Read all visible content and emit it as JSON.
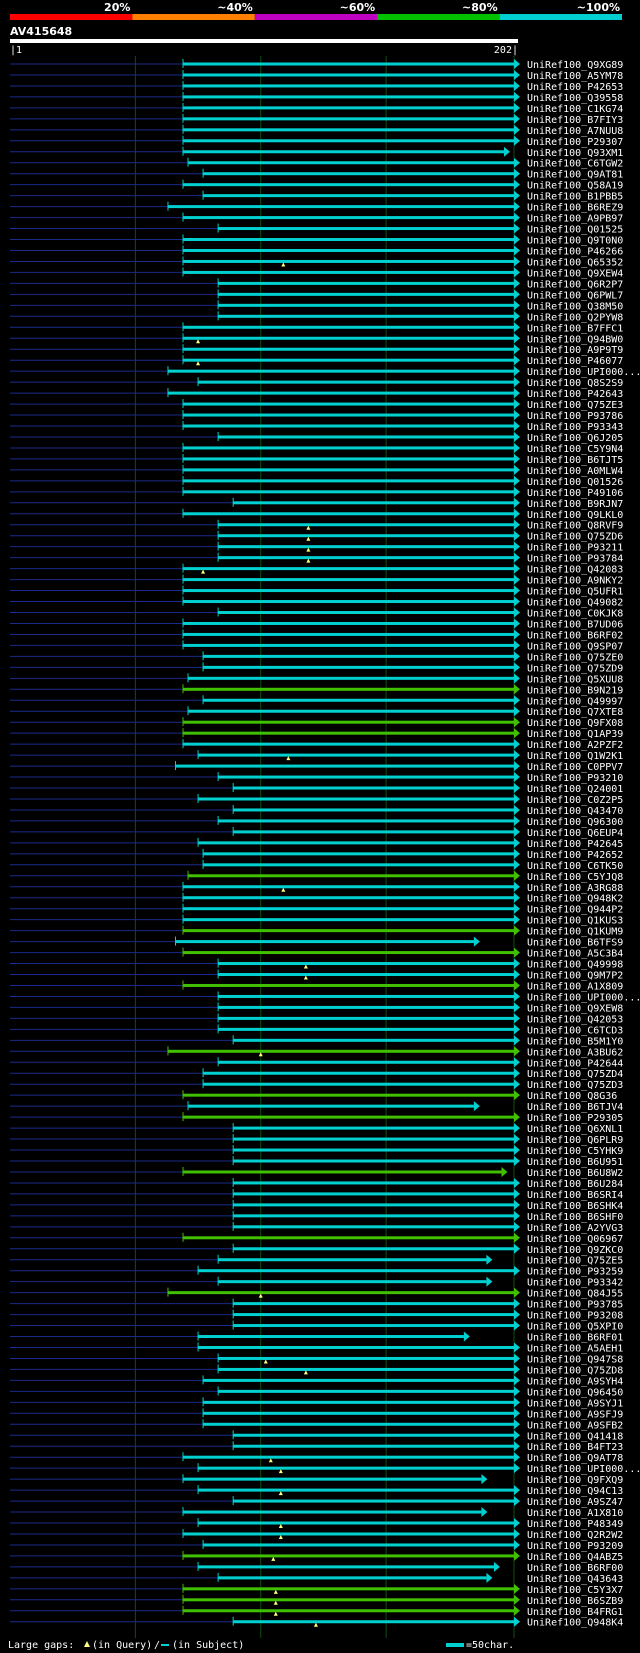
{
  "header": {
    "scale_labels": [
      "20%",
      "~40%",
      "~60%",
      "~80%",
      "~100%"
    ],
    "scale_colors": [
      "#ff0000",
      "#ff8000",
      "#c000c0",
      "#00c000",
      "#00d0d0"
    ],
    "query_id": "AV415648",
    "query_start": "1",
    "query_end": "202"
  },
  "colors": {
    "high_identity": "#00d0d0",
    "mid_identity": "#40c000",
    "gap_line": "#1a2a8a",
    "gridline": "#0f4f0f",
    "marker": "#ffff80"
  },
  "hits": [
    {
      "label": "UniRef100_Q9XG89",
      "start": 70,
      "end": 202,
      "level": "cyan",
      "end_arrow": true
    },
    {
      "label": "UniRef100_A5YM78",
      "start": 70,
      "end": 202,
      "level": "cyan"
    },
    {
      "label": "UniRef100_P42653",
      "start": 70,
      "end": 202,
      "level": "cyan"
    },
    {
      "label": "UniRef100_Q39558",
      "start": 70,
      "end": 202,
      "level": "cyan"
    },
    {
      "label": "UniRef100_C1KG74",
      "start": 70,
      "end": 202,
      "level": "cyan"
    },
    {
      "label": "UniRef100_B7FIY3",
      "start": 70,
      "end": 202,
      "level": "cyan"
    },
    {
      "label": "UniRef100_A7NUU8",
      "start": 70,
      "end": 202,
      "level": "cyan"
    },
    {
      "label": "UniRef100_P29307",
      "start": 70,
      "end": 202,
      "level": "cyan"
    },
    {
      "label": "UniRef100_Q93XM1",
      "start": 70,
      "end": 198,
      "level": "cyan",
      "end_arrow": true
    },
    {
      "label": "UniRef100_C6TGW2",
      "start": 72,
      "end": 202,
      "level": "cyan"
    },
    {
      "label": "UniRef100_Q9AT81",
      "start": 78,
      "end": 202,
      "level": "cyan"
    },
    {
      "label": "UniRef100_Q58A19",
      "start": 70,
      "end": 202,
      "level": "cyan"
    },
    {
      "label": "UniRef100_B1PBB5",
      "start": 78,
      "end": 202,
      "level": "cyan"
    },
    {
      "label": "UniRef100_B6REZ9",
      "start": 64,
      "end": 202,
      "level": "cyan"
    },
    {
      "label": "UniRef100_A9PB97",
      "start": 70,
      "end": 202,
      "level": "cyan"
    },
    {
      "label": "UniRef100_Q01525",
      "start": 84,
      "end": 202,
      "level": "cyan"
    },
    {
      "label": "UniRef100_Q9T0N0",
      "start": 70,
      "end": 202,
      "level": "cyan"
    },
    {
      "label": "UniRef100_P46266",
      "start": 70,
      "end": 202,
      "level": "cyan"
    },
    {
      "label": "UniRef100_Q65352",
      "start": 70,
      "end": 202,
      "level": "cyan",
      "marker": 110
    },
    {
      "label": "UniRef100_Q9XEW4",
      "start": 70,
      "end": 202,
      "level": "cyan"
    },
    {
      "label": "UniRef100_Q6R2P7",
      "start": 84,
      "end": 202,
      "level": "cyan"
    },
    {
      "label": "UniRef100_Q6PWL7",
      "start": 84,
      "end": 202,
      "level": "cyan"
    },
    {
      "label": "UniRef100_Q38M50",
      "start": 84,
      "end": 202,
      "level": "cyan"
    },
    {
      "label": "UniRef100_Q2PYW8",
      "start": 84,
      "end": 202,
      "level": "cyan"
    },
    {
      "label": "UniRef100_B7FFC1",
      "start": 70,
      "end": 202,
      "level": "cyan"
    },
    {
      "label": "UniRef100_Q94BW0",
      "start": 70,
      "end": 202,
      "level": "cyan",
      "marker": 76
    },
    {
      "label": "UniRef100_A9P9T9",
      "start": 70,
      "end": 202,
      "level": "cyan"
    },
    {
      "label": "UniRef100_P46077",
      "start": 70,
      "end": 202,
      "level": "cyan",
      "marker": 76
    },
    {
      "label": "UniRef100_UPI000...",
      "start": 64,
      "end": 202,
      "level": "cyan"
    },
    {
      "label": "UniRef100_Q8S2S9",
      "start": 76,
      "end": 202,
      "level": "cyan"
    },
    {
      "label": "UniRef100_P42643",
      "start": 64,
      "end": 202,
      "level": "cyan"
    },
    {
      "label": "UniRef100_Q75ZE3",
      "start": 70,
      "end": 202,
      "level": "cyan"
    },
    {
      "label": "UniRef100_P93786",
      "start": 70,
      "end": 202,
      "level": "cyan"
    },
    {
      "label": "UniRef100_P93343",
      "start": 70,
      "end": 202,
      "level": "cyan"
    },
    {
      "label": "UniRef100_Q6J205",
      "start": 84,
      "end": 202,
      "level": "cyan"
    },
    {
      "label": "UniRef100_C5Y9N4",
      "start": 70,
      "end": 202,
      "level": "cyan"
    },
    {
      "label": "UniRef100_B6TJT5",
      "start": 70,
      "end": 202,
      "level": "cyan"
    },
    {
      "label": "UniRef100_A0MLW4",
      "start": 70,
      "end": 202,
      "level": "cyan"
    },
    {
      "label": "UniRef100_Q01526",
      "start": 70,
      "end": 202,
      "level": "cyan"
    },
    {
      "label": "UniRef100_P49106",
      "start": 70,
      "end": 202,
      "level": "cyan"
    },
    {
      "label": "UniRef100_B9RJN7",
      "start": 90,
      "end": 202,
      "level": "cyan"
    },
    {
      "label": "UniRef100_Q9LKL0",
      "start": 70,
      "end": 202,
      "level": "cyan"
    },
    {
      "label": "UniRef100_Q8RVF9",
      "start": 84,
      "end": 202,
      "level": "cyan",
      "marker": 120
    },
    {
      "label": "UniRef100_Q75ZD6",
      "start": 84,
      "end": 202,
      "level": "cyan",
      "marker": 120
    },
    {
      "label": "UniRef100_P93211",
      "start": 84,
      "end": 202,
      "level": "cyan",
      "marker": 120
    },
    {
      "label": "UniRef100_P93784",
      "start": 84,
      "end": 202,
      "level": "cyan",
      "marker": 120
    },
    {
      "label": "UniRef100_Q42083",
      "start": 70,
      "end": 202,
      "level": "cyan",
      "marker": 78
    },
    {
      "label": "UniRef100_A9NKY2",
      "start": 70,
      "end": 202,
      "level": "cyan"
    },
    {
      "label": "UniRef100_Q5UFR1",
      "start": 70,
      "end": 202,
      "level": "cyan"
    },
    {
      "label": "UniRef100_Q49082",
      "start": 70,
      "end": 202,
      "level": "cyan"
    },
    {
      "label": "UniRef100_C0KJK8",
      "start": 84,
      "end": 202,
      "level": "cyan"
    },
    {
      "label": "UniRef100_B7UD06",
      "start": 70,
      "end": 202,
      "level": "cyan"
    },
    {
      "label": "UniRef100_B6RF02",
      "start": 70,
      "end": 202,
      "level": "cyan"
    },
    {
      "label": "UniRef100_Q9SP07",
      "start": 70,
      "end": 202,
      "level": "cyan"
    },
    {
      "label": "UniRef100_Q75ZE0",
      "start": 78,
      "end": 202,
      "level": "cyan"
    },
    {
      "label": "UniRef100_Q75ZD9",
      "start": 78,
      "end": 202,
      "level": "cyan"
    },
    {
      "label": "UniRef100_Q5XUU8",
      "start": 72,
      "end": 202,
      "level": "cyan"
    },
    {
      "label": "UniRef100_B9N219",
      "start": 70,
      "end": 202,
      "level": "green"
    },
    {
      "label": "UniRef100_Q49997",
      "start": 78,
      "end": 202,
      "level": "cyan"
    },
    {
      "label": "UniRef100_Q7XTE8",
      "start": 72,
      "end": 202,
      "level": "cyan"
    },
    {
      "label": "UniRef100_Q9FX08",
      "start": 70,
      "end": 202,
      "level": "green"
    },
    {
      "label": "UniRef100_Q1AP39",
      "start": 70,
      "end": 202,
      "level": "green"
    },
    {
      "label": "UniRef100_A2PZF2",
      "start": 70,
      "end": 202,
      "level": "cyan"
    },
    {
      "label": "UniRef100_Q1W2K1",
      "start": 76,
      "end": 202,
      "level": "cyan",
      "marker": 112
    },
    {
      "label": "UniRef100_C0PPV7",
      "start": 67,
      "end": 202,
      "level": "cyan"
    },
    {
      "label": "UniRef100_P93210",
      "start": 84,
      "end": 202,
      "level": "cyan"
    },
    {
      "label": "UniRef100_Q24001",
      "start": 90,
      "end": 202,
      "level": "cyan"
    },
    {
      "label": "UniRef100_C0Z2P5",
      "start": 76,
      "end": 202,
      "level": "cyan"
    },
    {
      "label": "UniRef100_Q43470",
      "start": 90,
      "end": 202,
      "level": "cyan"
    },
    {
      "label": "UniRef100_Q96300",
      "start": 84,
      "end": 202,
      "level": "cyan"
    },
    {
      "label": "UniRef100_Q6EUP4",
      "start": 90,
      "end": 202,
      "level": "cyan"
    },
    {
      "label": "UniRef100_P42645",
      "start": 76,
      "end": 202,
      "level": "cyan"
    },
    {
      "label": "UniRef100_P42652",
      "start": 78,
      "end": 202,
      "level": "cyan"
    },
    {
      "label": "UniRef100_C6TK50",
      "start": 78,
      "end": 202,
      "level": "cyan"
    },
    {
      "label": "UniRef100_C5YJQ8",
      "start": 72,
      "end": 202,
      "level": "green"
    },
    {
      "label": "UniRef100_A3RG88",
      "start": 70,
      "end": 202,
      "level": "cyan",
      "marker": 110
    },
    {
      "label": "UniRef100_Q948K2",
      "start": 70,
      "end": 202,
      "level": "cyan"
    },
    {
      "label": "UniRef100_Q944P2",
      "start": 70,
      "end": 202,
      "level": "cyan"
    },
    {
      "label": "UniRef100_Q1KUS3",
      "start": 70,
      "end": 202,
      "level": "cyan"
    },
    {
      "label": "UniRef100_Q1KUM9",
      "start": 70,
      "end": 202,
      "level": "green"
    },
    {
      "label": "UniRef100_B6TFS9",
      "start": 67,
      "end": 186,
      "level": "cyan",
      "end_arrow": true
    },
    {
      "label": "UniRef100_A5C3B4",
      "start": 70,
      "end": 202,
      "level": "green"
    },
    {
      "label": "UniRef100_Q49998",
      "start": 84,
      "end": 202,
      "level": "cyan",
      "marker": 119
    },
    {
      "label": "UniRef100_Q9M7P2",
      "start": 84,
      "end": 202,
      "level": "cyan",
      "marker": 119
    },
    {
      "label": "UniRef100_A1X809",
      "start": 70,
      "end": 202,
      "level": "green"
    },
    {
      "label": "UniRef100_UPI000...",
      "start": 84,
      "end": 202,
      "level": "cyan"
    },
    {
      "label": "UniRef100_Q9XEW8",
      "start": 84,
      "end": 202,
      "level": "cyan"
    },
    {
      "label": "UniRef100_Q42053",
      "start": 84,
      "end": 202,
      "level": "cyan"
    },
    {
      "label": "UniRef100_C6TCD3",
      "start": 84,
      "end": 202,
      "level": "cyan"
    },
    {
      "label": "UniRef100_B5M1Y0",
      "start": 90,
      "end": 202,
      "level": "cyan"
    },
    {
      "label": "UniRef100_A3BU62",
      "start": 64,
      "end": 202,
      "level": "green",
      "marker": 101
    },
    {
      "label": "UniRef100_P42644",
      "start": 84,
      "end": 202,
      "level": "cyan"
    },
    {
      "label": "UniRef100_Q75ZD4",
      "start": 78,
      "end": 202,
      "level": "cyan"
    },
    {
      "label": "UniRef100_Q75ZD3",
      "start": 78,
      "end": 202,
      "level": "cyan"
    },
    {
      "label": "UniRef100_Q8G36",
      "start": 70,
      "end": 202,
      "level": "green"
    },
    {
      "label": "UniRef100_B6TJV4",
      "start": 72,
      "end": 186,
      "level": "cyan",
      "end_arrow": true
    },
    {
      "label": "UniRef100_P29305",
      "start": 70,
      "end": 202,
      "level": "green"
    },
    {
      "label": "UniRef100_Q6XNL1",
      "start": 90,
      "end": 202,
      "level": "cyan"
    },
    {
      "label": "UniRef100_Q6PLR9",
      "start": 90,
      "end": 202,
      "level": "cyan"
    },
    {
      "label": "UniRef100_C5YHK9",
      "start": 90,
      "end": 202,
      "level": "cyan"
    },
    {
      "label": "UniRef100_B6U951",
      "start": 90,
      "end": 202,
      "level": "cyan"
    },
    {
      "label": "UniRef100_B6U8W2",
      "start": 70,
      "end": 197,
      "level": "green",
      "end_arrow": true
    },
    {
      "label": "UniRef100_B6U284",
      "start": 90,
      "end": 202,
      "level": "cyan"
    },
    {
      "label": "UniRef100_B6SRI4",
      "start": 90,
      "end": 202,
      "level": "cyan"
    },
    {
      "label": "UniRef100_B6SHK4",
      "start": 90,
      "end": 202,
      "level": "cyan"
    },
    {
      "label": "UniRef100_B6SHF0",
      "start": 90,
      "end": 202,
      "level": "cyan"
    },
    {
      "label": "UniRef100_A2YVG3",
      "start": 90,
      "end": 202,
      "level": "cyan"
    },
    {
      "label": "UniRef100_Q06967",
      "start": 70,
      "end": 202,
      "level": "green"
    },
    {
      "label": "UniRef100_Q9ZKC0",
      "start": 90,
      "end": 202,
      "level": "cyan"
    },
    {
      "label": "UniRef100_Q75ZE5",
      "start": 84,
      "end": 191,
      "level": "cyan",
      "end_arrow": true
    },
    {
      "label": "UniRef100_P93259",
      "start": 76,
      "end": 202,
      "level": "cyan"
    },
    {
      "label": "UniRef100_P93342",
      "start": 84,
      "end": 191,
      "level": "cyan",
      "end_arrow": true
    },
    {
      "label": "UniRef100_Q84J55",
      "start": 64,
      "end": 202,
      "level": "green",
      "marker": 101
    },
    {
      "label": "UniRef100_P93785",
      "start": 90,
      "end": 202,
      "level": "cyan"
    },
    {
      "label": "UniRef100_P93208",
      "start": 90,
      "end": 202,
      "level": "cyan"
    },
    {
      "label": "UniRef100_Q5XPI0",
      "start": 90,
      "end": 202,
      "level": "cyan"
    },
    {
      "label": "UniRef100_B6RF01",
      "start": 76,
      "end": 182,
      "level": "cyan",
      "end_arrow": true
    },
    {
      "label": "UniRef100_A5AEH1",
      "start": 76,
      "end": 202,
      "level": "cyan"
    },
    {
      "label": "UniRef100_Q947S8",
      "start": 84,
      "end": 202,
      "level": "cyan",
      "marker": 103
    },
    {
      "label": "UniRef100_Q75ZD8",
      "start": 84,
      "end": 202,
      "level": "cyan",
      "marker": 119
    },
    {
      "label": "UniRef100_A9SYH4",
      "start": 78,
      "end": 202,
      "level": "cyan"
    },
    {
      "label": "UniRef100_Q96450",
      "start": 84,
      "end": 202,
      "level": "cyan"
    },
    {
      "label": "UniRef100_A9SYJ1",
      "start": 78,
      "end": 202,
      "level": "cyan"
    },
    {
      "label": "UniRef100_A9SFJ9",
      "start": 78,
      "end": 202,
      "level": "cyan"
    },
    {
      "label": "UniRef100_A9SFB2",
      "start": 78,
      "end": 202,
      "level": "cyan"
    },
    {
      "label": "UniRef100_Q41418",
      "start": 90,
      "end": 202,
      "level": "cyan"
    },
    {
      "label": "UniRef100_B4FT23",
      "start": 90,
      "end": 202,
      "level": "cyan"
    },
    {
      "label": "UniRef100_Q9AT78",
      "start": 70,
      "end": 202,
      "level": "cyan",
      "marker": 105
    },
    {
      "label": "UniRef100_UPI000...",
      "start": 76,
      "end": 202,
      "level": "cyan",
      "marker": 109
    },
    {
      "label": "UniRef100_Q9FXQ9",
      "start": 70,
      "end": 189,
      "level": "cyan",
      "end_arrow": true
    },
    {
      "label": "UniRef100_Q94C13",
      "start": 76,
      "end": 202,
      "level": "cyan",
      "marker": 109
    },
    {
      "label": "UniRef100_A9SZ47",
      "start": 90,
      "end": 202,
      "level": "cyan"
    },
    {
      "label": "UniRef100_A1X810",
      "start": 70,
      "end": 189,
      "level": "cyan",
      "end_arrow": true
    },
    {
      "label": "UniRef100_P48349",
      "start": 76,
      "end": 202,
      "level": "cyan",
      "marker": 109
    },
    {
      "label": "UniRef100_Q2R2W2",
      "start": 70,
      "end": 202,
      "level": "cyan",
      "marker": 109
    },
    {
      "label": "UniRef100_P93209",
      "start": 78,
      "end": 202,
      "level": "cyan"
    },
    {
      "label": "UniRef100_Q4ABZ5",
      "start": 70,
      "end": 202,
      "level": "green",
      "marker": 106
    },
    {
      "label": "UniRef100_B6RF00",
      "start": 76,
      "end": 194,
      "level": "cyan",
      "end_arrow": true
    },
    {
      "label": "UniRef100_Q43643",
      "start": 84,
      "end": 191,
      "level": "cyan",
      "end_arrow": true
    },
    {
      "label": "UniRef100_C5Y3X7",
      "start": 70,
      "end": 202,
      "level": "green",
      "marker": 107
    },
    {
      "label": "UniRef100_B6SZB9",
      "start": 70,
      "end": 202,
      "level": "green",
      "marker": 107
    },
    {
      "label": "UniRef100_B4FRG1",
      "start": 70,
      "end": 202,
      "level": "green",
      "marker": 107
    },
    {
      "label": "UniRef100_Q948K4",
      "start": 90,
      "end": 202,
      "level": "cyan",
      "marker": 123
    }
  ],
  "legend": {
    "gaps_label": "Large gaps:",
    "query_gap": "(in Query)",
    "subject_gap": "(in Subject)",
    "scale_text": "=50char."
  }
}
